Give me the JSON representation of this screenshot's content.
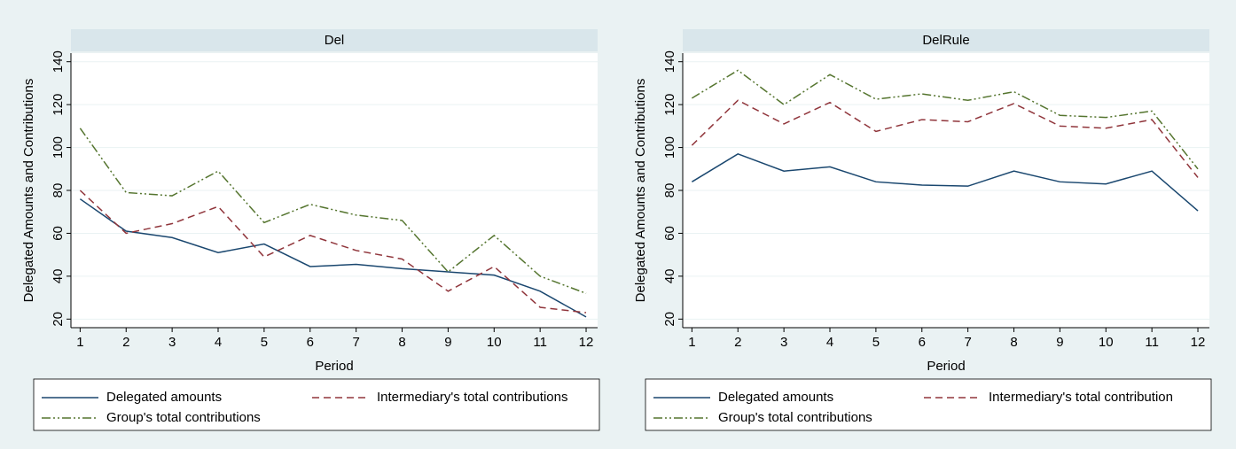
{
  "chart_data": [
    {
      "type": "line",
      "title": "Del",
      "xlabel": "Period",
      "ylabel": "Delegated Amounts and Contributions",
      "x": [
        1,
        2,
        3,
        4,
        5,
        6,
        7,
        8,
        9,
        10,
        11,
        12
      ],
      "xlim": [
        0.8,
        12.25
      ],
      "xticks": [
        1,
        2,
        3,
        4,
        5,
        6,
        7,
        8,
        9,
        10,
        11,
        12
      ],
      "ylim": [
        16,
        144
      ],
      "yticks": [
        20,
        40,
        60,
        80,
        100,
        120,
        140
      ],
      "grid": true,
      "series": [
        {
          "name": "Delegated amounts",
          "color": "#1a476f",
          "dash": "solid",
          "values": [
            76,
            61,
            58,
            51,
            55,
            44.5,
            45.5,
            43.5,
            42,
            40.5,
            33,
            21
          ]
        },
        {
          "name": "Intermediary's total contributions",
          "color": "#90353b",
          "dash": "dashed",
          "values": [
            80,
            60,
            64.5,
            72.5,
            49,
            59,
            52,
            48,
            33,
            44.5,
            25.5,
            23
          ]
        },
        {
          "name": "Group's total contributions",
          "color": "#55752f",
          "dash": "dashdot",
          "values": [
            109,
            79,
            77.5,
            89,
            65,
            73.5,
            68.5,
            66,
            42,
            59,
            40,
            32
          ]
        }
      ]
    },
    {
      "type": "line",
      "title": "DelRule",
      "xlabel": "Period",
      "ylabel": "Delegated Amounts and Contributions",
      "x": [
        1,
        2,
        3,
        4,
        5,
        6,
        7,
        8,
        9,
        10,
        11,
        12
      ],
      "xlim": [
        0.8,
        12.25
      ],
      "xticks": [
        1,
        2,
        3,
        4,
        5,
        6,
        7,
        8,
        9,
        10,
        11,
        12
      ],
      "ylim": [
        16,
        144
      ],
      "yticks": [
        20,
        40,
        60,
        80,
        100,
        120,
        140
      ],
      "grid": true,
      "series": [
        {
          "name": "Delegated amounts",
          "color": "#1a476f",
          "dash": "solid",
          "values": [
            84,
            97,
            89,
            91,
            84,
            82.5,
            82,
            89,
            84,
            83,
            89,
            70.5
          ]
        },
        {
          "name": "Intermediary's total contribution",
          "color": "#90353b",
          "dash": "dashed",
          "values": [
            101,
            122,
            111,
            121,
            107.5,
            113,
            112,
            120.5,
            110,
            109,
            113,
            86
          ]
        },
        {
          "name": "Group's total contributions",
          "color": "#55752f",
          "dash": "dashdot",
          "values": [
            123,
            136,
            120,
            134,
            122.5,
            125,
            122,
            126,
            115,
            114,
            117,
            90
          ]
        }
      ]
    }
  ]
}
